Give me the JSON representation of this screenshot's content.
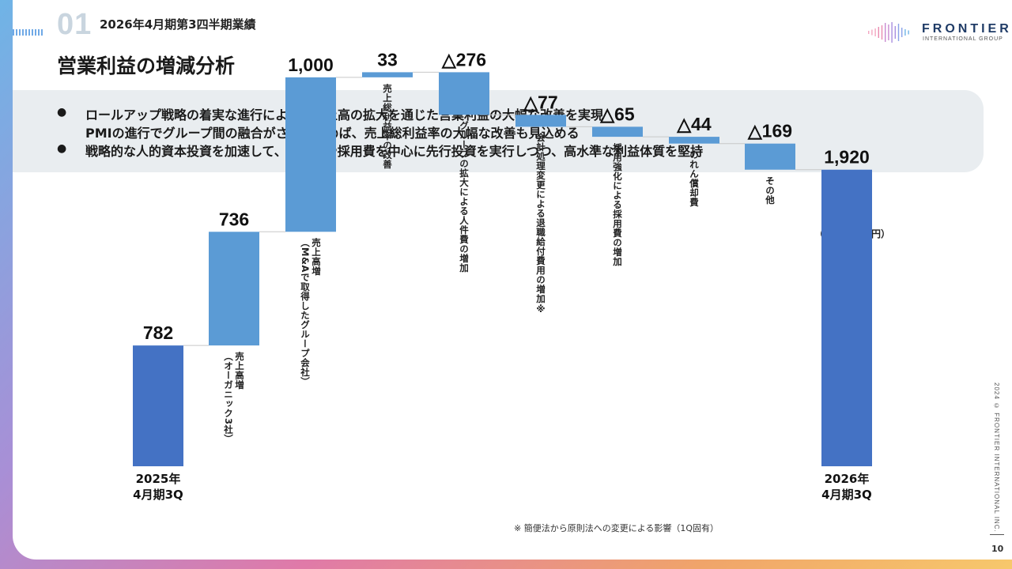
{
  "header": {
    "section_number": "01",
    "label": "2026年4月期第3四半期業績",
    "title": "営業利益の増減分析"
  },
  "logo": {
    "main": "FRONTIER",
    "sub": "INTERNATIONAL GROUP"
  },
  "summary": {
    "bullet1_line1": "ロールアップ戦略の着実な進行により、売上高の拡大を通じた営業利益の大幅な改善を実現",
    "bullet1_line2": "PMIの進行でグループ間の融合がさらに進めば、売上総利益率の大幅な改善も見込める",
    "bullet2": "戦略的な人的資本投資を加速して、人件費や採用費を中心に先行投資を実行しつつ、高水準な利益体質を堅持"
  },
  "chart_data": {
    "type": "bar",
    "subtype": "waterfall",
    "unit_label": "（単位：百万円）",
    "categories": [
      "2025年\n4月期3Q",
      "売上高増\n（オーガニック3社）",
      "売上高増\n（M&Aで取得したグループ会社）",
      "売上総利益率の改善",
      "グループの拡大による人件費の増加",
      "会計処理変更による退職給付費用の増加※",
      "採用強化による採用費の増加",
      "のれん償却費",
      "その他",
      "2026年\n4月期3Q"
    ],
    "values": [
      782,
      736,
      1000,
      33,
      -276,
      -77,
      -65,
      -44,
      -169,
      1920
    ],
    "value_labels": [
      "782",
      "736",
      "1,000",
      "33",
      "△276",
      "△77",
      "△65",
      "△44",
      "△169",
      "1,920"
    ],
    "bar_kinds": [
      "total",
      "delta",
      "delta",
      "delta",
      "delta",
      "delta",
      "delta",
      "delta",
      "delta",
      "total"
    ],
    "ylim": [
      0,
      2200
    ],
    "colors": {
      "total": "#4472c4",
      "delta": "#5b9bd5"
    }
  },
  "footnote": "※ 簡便法から原則法への変更による影響（1Q固有）",
  "footer": {
    "copyright": "2024 © FRONTIER INTERNATIONAL INC.",
    "page_number": "10"
  }
}
